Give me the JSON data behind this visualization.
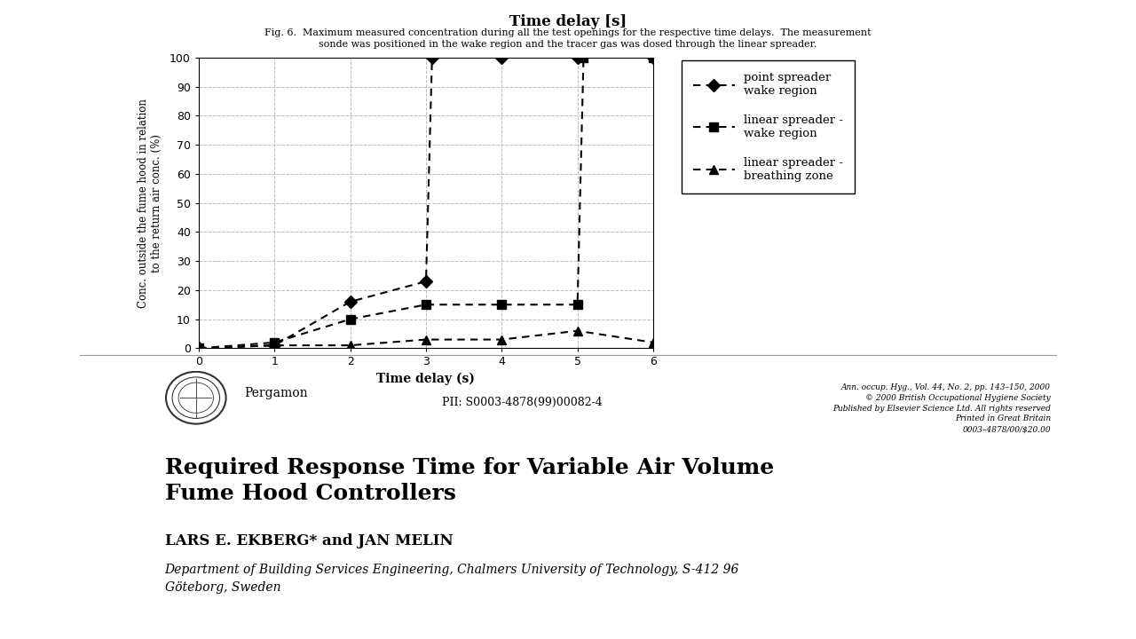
{
  "title_top": "Time delay [s]",
  "fig_caption_line1": "Fig. 6.  Maximum measured concentration during all the test openings for the respective time delays.  The measurement",
  "fig_caption_line2": "sonde was positioned in the wake region and the tracer gas was dosed through the linear spreader.",
  "xlabel": "Time delay (s)",
  "ylabel": "Conc. outside the fume hood in relation\nto the return air conc. (%)",
  "xlim": [
    0,
    6
  ],
  "ylim": [
    0,
    100
  ],
  "yticks": [
    0,
    10,
    20,
    30,
    40,
    50,
    60,
    70,
    80,
    90,
    100
  ],
  "xticks": [
    0,
    1,
    2,
    3,
    4,
    5,
    6
  ],
  "series": [
    {
      "label": "point spreader\nwake region",
      "x": [
        0,
        1,
        2,
        3,
        3.08,
        4,
        5,
        6
      ],
      "y": [
        0,
        1,
        16,
        23,
        100,
        100,
        100,
        100
      ],
      "marker": "D",
      "markersize": 7,
      "color": "#000000",
      "linewidth": 1.5
    },
    {
      "label": "linear spreader -\nwake region",
      "x": [
        0,
        1,
        2,
        3,
        4,
        5,
        5.08,
        6
      ],
      "y": [
        0,
        2,
        10,
        15,
        15,
        15,
        100,
        100
      ],
      "marker": "s",
      "markersize": 7,
      "color": "#000000",
      "linewidth": 1.5
    },
    {
      "label": "linear spreader -\nbreathing zone",
      "x": [
        0,
        1,
        2,
        3,
        4,
        5,
        6
      ],
      "y": [
        0,
        1,
        1,
        3,
        3,
        6,
        2
      ],
      "marker": "^",
      "markersize": 7,
      "color": "#000000",
      "linewidth": 1.5
    }
  ],
  "background_color": "#ffffff",
  "grid_color": "#bbbbbb",
  "separator_color": "#999999",
  "journal_text": "Ann. occup. Hyg., Vol. 44, No. 2, pp. 143–150, 2000\n© 2000 British Occupational Hygiene Society\nPublished by Elsevier Science Ltd. All rights reserved\nPrinted in Great Britain\n0003–4878/00/$20.00",
  "pii_text": "PII: S0003-4878(99)00082-4",
  "pergamon_text": "Pergamon",
  "big_title": "Required Response Time for Variable Air Volume\nFume Hood Controllers",
  "authors": "LARS E. EKBERG* and JAN MELIN",
  "affiliation": "Department of Building Services Engineering, Chalmers University of Technology, S-412 96\nGöteborg, Sweden"
}
